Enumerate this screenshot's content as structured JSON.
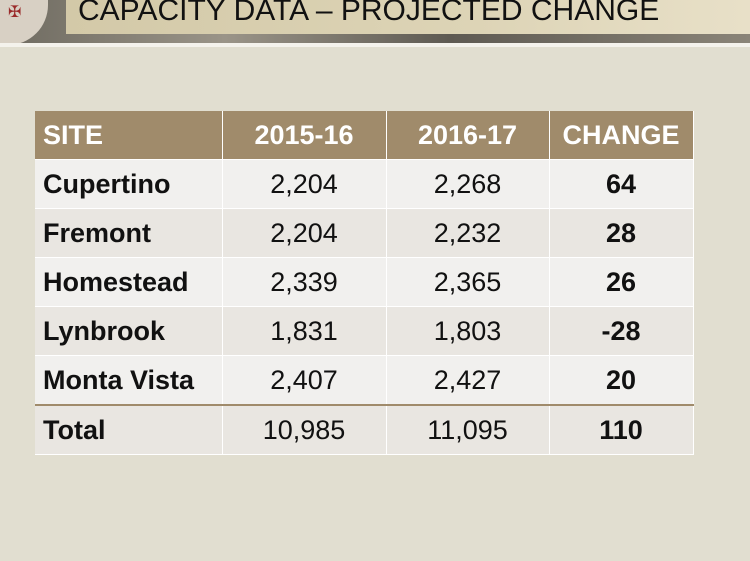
{
  "title": "CAPACITY DATA – PROJECTED CHANGE",
  "table": {
    "headers": [
      "SITE",
      "2015-16",
      "2016-17",
      "CHANGE"
    ],
    "rows": [
      [
        "Cupertino",
        "2,204",
        "2,268",
        "64"
      ],
      [
        "Fremont",
        "2,204",
        "2,232",
        "28"
      ],
      [
        "Homestead",
        "2,339",
        "2,365",
        "26"
      ],
      [
        "Lynbrook",
        "1,831",
        "1,803",
        "-28"
      ],
      [
        "Monta Vista",
        "2,407",
        "2,427",
        "20"
      ],
      [
        "Total",
        "10,985",
        "11,095",
        "110"
      ]
    ]
  }
}
